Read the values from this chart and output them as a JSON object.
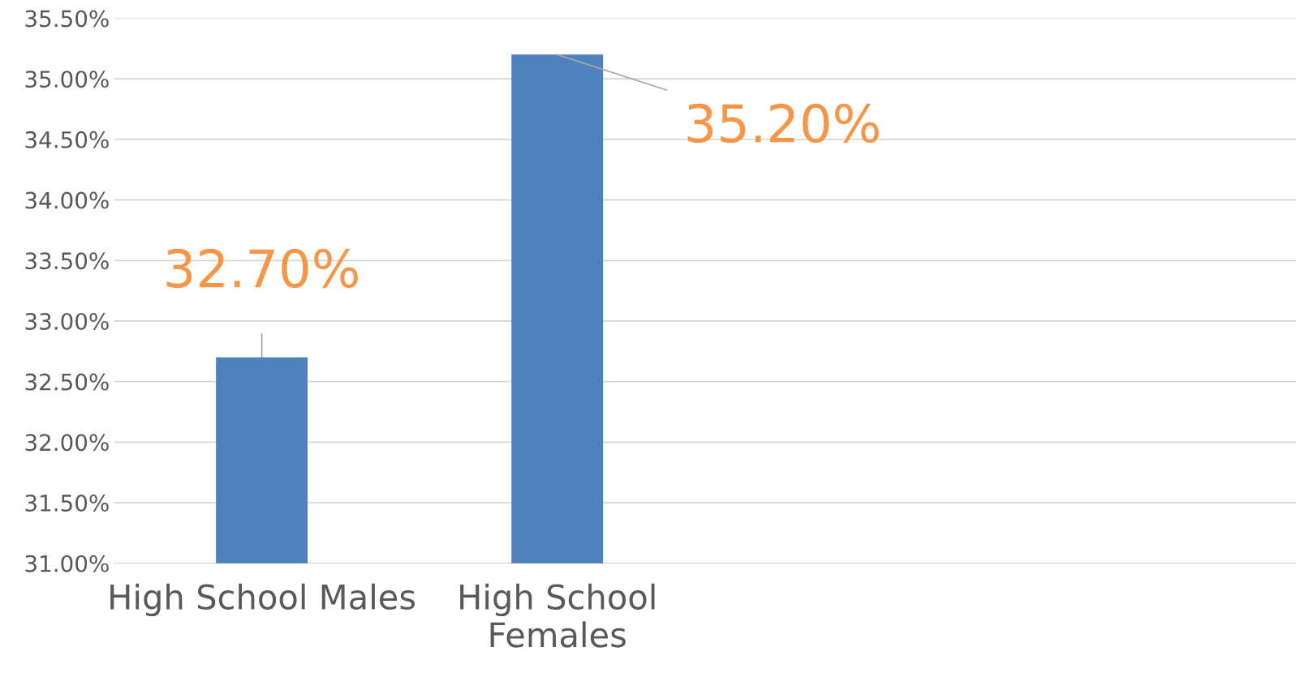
{
  "chart_data": {
    "type": "bar",
    "categories": [
      "High School Males",
      "High School Females",
      null,
      null
    ],
    "values": [
      32.7,
      35.2,
      null,
      null
    ],
    "color": "#4f81bd",
    "value_labels": [
      "32.70%",
      "35.20%",
      null,
      null
    ],
    "ylim": [
      31,
      35.5
    ],
    "yticks": [
      {
        "value": 31,
        "label": "31.00%"
      },
      {
        "value": 31.5,
        "label": "31.50%"
      },
      {
        "value": 32,
        "label": "32.00%"
      },
      {
        "value": 32.5,
        "label": "32.50%"
      },
      {
        "value": 33,
        "label": "33.00%"
      },
      {
        "value": 33.5,
        "label": "33.50%"
      },
      {
        "value": 34,
        "label": "34.00%"
      },
      {
        "value": 34.5,
        "label": "34.50%"
      },
      {
        "value": 35,
        "label": "35.00%"
      },
      {
        "value": 35.5,
        "label": "35.50%"
      }
    ],
    "grid": "y"
  }
}
